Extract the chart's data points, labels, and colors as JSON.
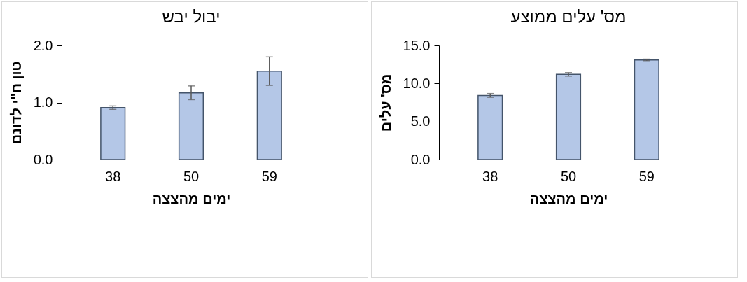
{
  "chart_data": [
    {
      "type": "bar",
      "title": "יבול יבש",
      "xlabel": "ימים מהצצה",
      "ylabel": "טון ח\"י לדונם",
      "categories": [
        "38",
        "50",
        "59"
      ],
      "values": [
        0.91,
        1.17,
        1.55
      ],
      "errors": [
        0.03,
        0.12,
        0.25
      ],
      "color": "#b4c7e7",
      "ylim": [
        0,
        2
      ],
      "yticks": [
        {
          "value": 0,
          "label": "0.0"
        },
        {
          "value": 1,
          "label": "1.0"
        },
        {
          "value": 2,
          "label": "2.0"
        }
      ],
      "grid": false
    },
    {
      "type": "bar",
      "title": "מס' עלים ממוצע",
      "xlabel": "ימים מהצצה",
      "ylabel": "מס' עלים",
      "categories": [
        "38",
        "50",
        "59"
      ],
      "values": [
        8.43,
        11.2,
        13.1
      ],
      "errors": [
        0.25,
        0.23,
        0.1
      ],
      "color": "#b4c7e7",
      "ylim": [
        0,
        15
      ],
      "yticks": [
        {
          "value": 0,
          "label": "0.0"
        },
        {
          "value": 5,
          "label": "5.0"
        },
        {
          "value": 10,
          "label": "10.0"
        },
        {
          "value": 15,
          "label": "15.0"
        }
      ],
      "grid": false
    }
  ]
}
